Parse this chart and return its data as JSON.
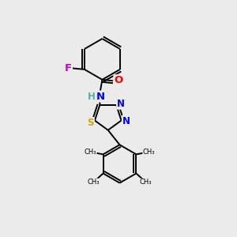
{
  "background_color": "#ebebeb",
  "bond_color": "#000000",
  "atom_colors": {
    "F": "#cc00cc",
    "O": "#ff0000",
    "H": "#5faaaa",
    "N": "#0000ff",
    "S": "#ccaa00"
  },
  "bond_width": 1.4,
  "font_size_atoms": 8.5,
  "figsize": [
    3.0,
    3.0
  ],
  "dpi": 100,
  "xlim": [
    0,
    10
  ],
  "ylim": [
    0,
    10
  ]
}
